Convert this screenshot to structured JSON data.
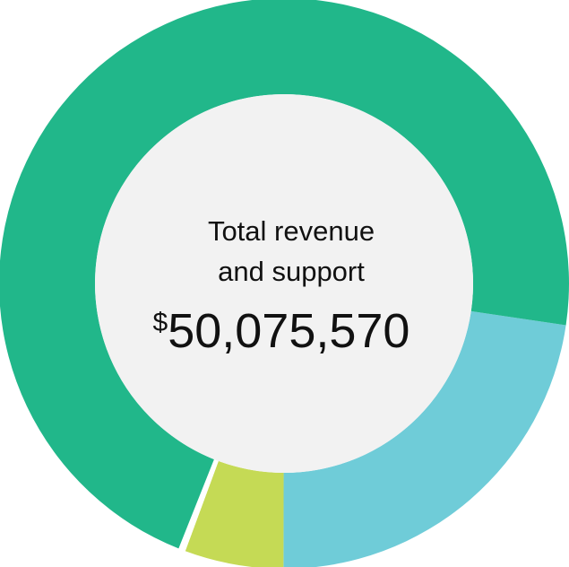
{
  "chart_data": {
    "type": "donut",
    "center_label": [
      "Total revenue",
      "and support"
    ],
    "center_value": "$50,075,570",
    "values": [
      22.7,
      5.6,
      0.4,
      71.3
    ],
    "colors": [
      "#6fccd8",
      "#c5da55",
      "#ffffff",
      "#21b78a"
    ],
    "hole_color": "#f2f2f2"
  }
}
